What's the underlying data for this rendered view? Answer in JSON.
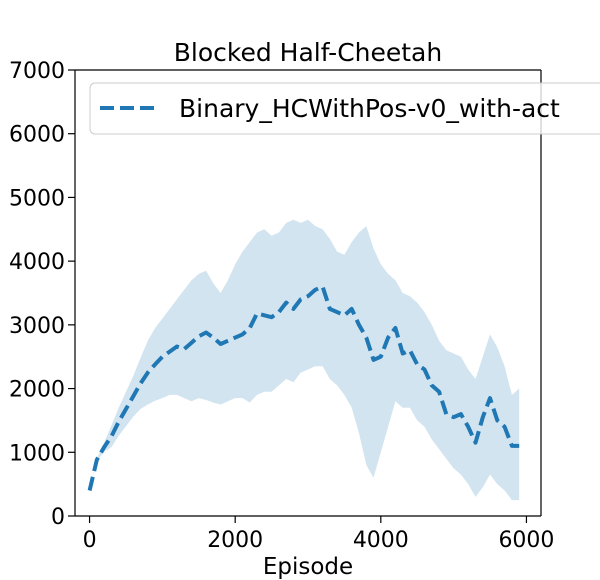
{
  "chart_data": {
    "type": "line",
    "title": "Blocked Half-Cheetah",
    "xlabel": "Episode",
    "ylabel": "",
    "xlim": [
      -200,
      6200
    ],
    "ylim": [
      0,
      7000
    ],
    "xticks": [
      0,
      2000,
      4000,
      6000
    ],
    "yticks": [
      0,
      1000,
      2000,
      3000,
      4000,
      5000,
      6000,
      7000
    ],
    "xtick_labels": [
      "0",
      "2000",
      "4000",
      "6000"
    ],
    "ytick_labels": [
      "0",
      "1000",
      "2000",
      "3000",
      "4000",
      "5000",
      "6000",
      "7000"
    ],
    "grid": false,
    "legend_position": "top-left",
    "series": [
      {
        "name": "Binary_HCWithPos-v0_with-act",
        "color": "#1f77b4",
        "band_color": "#1f77b4",
        "line_style": "dashed",
        "x": [
          0,
          100,
          200,
          300,
          400,
          500,
          600,
          700,
          800,
          900,
          1000,
          1100,
          1200,
          1300,
          1400,
          1500,
          1600,
          1700,
          1800,
          1900,
          2000,
          2100,
          2200,
          2300,
          2400,
          2500,
          2600,
          2700,
          2800,
          2900,
          3000,
          3100,
          3200,
          3300,
          3400,
          3500,
          3600,
          3700,
          3800,
          3900,
          4000,
          4100,
          4200,
          4300,
          4400,
          4500,
          4600,
          4700,
          4800,
          4900,
          5000,
          5100,
          5200,
          5300,
          5400,
          5500,
          5600,
          5700,
          5800,
          5900
        ],
        "mean": [
          400,
          880,
          1080,
          1250,
          1480,
          1680,
          1880,
          2080,
          2250,
          2380,
          2500,
          2580,
          2660,
          2620,
          2720,
          2820,
          2880,
          2800,
          2700,
          2750,
          2800,
          2850,
          2950,
          3180,
          3150,
          3120,
          3200,
          3350,
          3250,
          3400,
          3450,
          3550,
          3600,
          3250,
          3200,
          3150,
          3250,
          3000,
          2800,
          2450,
          2500,
          2800,
          2950,
          2550,
          2600,
          2380,
          2300,
          2050,
          1950,
          1600,
          1550,
          1600,
          1400,
          1150,
          1550,
          1850,
          1500,
          1400,
          1100,
          1100
        ],
        "upper": [
          400,
          900,
          1150,
          1420,
          1700,
          1950,
          2200,
          2480,
          2750,
          2950,
          3100,
          3250,
          3400,
          3550,
          3700,
          3800,
          3850,
          3650,
          3500,
          3700,
          3950,
          4150,
          4300,
          4450,
          4500,
          4400,
          4450,
          4600,
          4650,
          4600,
          4650,
          4550,
          4500,
          4350,
          4150,
          4100,
          4300,
          4450,
          4550,
          4200,
          3950,
          3800,
          3700,
          3500,
          3450,
          3350,
          3200,
          3000,
          2750,
          2600,
          2550,
          2500,
          2300,
          2150,
          2500,
          2850,
          2650,
          2350,
          1900,
          2000
        ],
        "lower": [
          400,
          860,
          1010,
          1080,
          1260,
          1410,
          1560,
          1680,
          1750,
          1810,
          1850,
          1900,
          1900,
          1850,
          1800,
          1850,
          1820,
          1780,
          1750,
          1800,
          1850,
          1850,
          1780,
          1900,
          1950,
          1950,
          2050,
          2150,
          2100,
          2250,
          2300,
          2350,
          2350,
          2150,
          2050,
          1900,
          1700,
          1300,
          800,
          600,
          1000,
          1400,
          1800,
          1700,
          1700,
          1500,
          1400,
          1200,
          1050,
          900,
          750,
          650,
          500,
          300,
          450,
          650,
          500,
          400,
          250,
          250
        ]
      }
    ]
  }
}
